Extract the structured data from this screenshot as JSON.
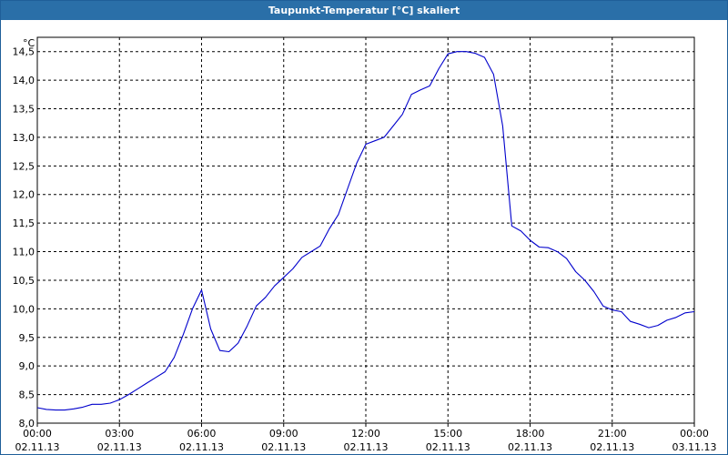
{
  "window": {
    "title": "Taupunkt-Temperatur [°C] skaliert"
  },
  "colors": {
    "titlebar": "#2a6fa8",
    "line": "#0000cc",
    "grid": "#000000"
  },
  "chart_data": {
    "type": "line",
    "title": "Taupunkt-Temperatur [°C] skaliert",
    "ylabel": "°C",
    "xlabel": "",
    "ylim": [
      8.0,
      14.75
    ],
    "xlim": [
      "2013-11-02 00:00",
      "2013-11-03 00:00"
    ],
    "grid": true,
    "yticks": [
      "8,0",
      "8,5",
      "9,0",
      "9,5",
      "10,0",
      "10,5",
      "11,0",
      "11,5",
      "12,0",
      "12,5",
      "13,0",
      "13,5",
      "14,0",
      "14,5"
    ],
    "ytick_values": [
      8.0,
      8.5,
      9.0,
      9.5,
      10.0,
      10.5,
      11.0,
      11.5,
      12.0,
      12.5,
      13.0,
      13.5,
      14.0,
      14.5
    ],
    "xticks": [
      {
        "time": "00:00",
        "date": "02.11.13"
      },
      {
        "time": "03:00",
        "date": "02.11.13"
      },
      {
        "time": "06:00",
        "date": "02.11.13"
      },
      {
        "time": "09:00",
        "date": "02.11.13"
      },
      {
        "time": "12:00",
        "date": "02.11.13"
      },
      {
        "time": "15:00",
        "date": "02.11.13"
      },
      {
        "time": "18:00",
        "date": "02.11.13"
      },
      {
        "time": "21:00",
        "date": "02.11.13"
      },
      {
        "time": "00:00",
        "date": "03.11.13"
      }
    ],
    "series": [
      {
        "x": [
          "00:00",
          "00:20",
          "00:40",
          "01:00",
          "01:20",
          "01:40",
          "02:00",
          "02:20",
          "02:40",
          "03:00",
          "03:20",
          "03:40",
          "04:00",
          "04:20",
          "04:40",
          "05:00",
          "05:20",
          "05:40",
          "06:00",
          "06:20",
          "06:40",
          "07:00",
          "07:20",
          "07:40",
          "08:00",
          "08:20",
          "08:40",
          "09:00",
          "09:20",
          "09:40",
          "10:00",
          "10:20",
          "10:40",
          "11:00",
          "11:20",
          "11:40",
          "12:00",
          "12:20",
          "12:40",
          "13:00",
          "13:20",
          "13:40",
          "14:00",
          "14:20",
          "14:40",
          "15:00",
          "15:20",
          "15:40",
          "16:00",
          "16:20",
          "16:40",
          "17:00",
          "17:20",
          "17:40",
          "18:00",
          "18:20",
          "18:40",
          "19:00",
          "19:20",
          "19:40",
          "20:00",
          "20:20",
          "20:40",
          "21:00",
          "21:20",
          "21:40",
          "22:00",
          "22:20",
          "22:40",
          "23:00",
          "23:20",
          "23:40",
          "24:00"
        ],
        "values": [
          8.27,
          8.24,
          8.23,
          8.23,
          8.25,
          8.28,
          8.33,
          8.33,
          8.35,
          8.41,
          8.5,
          8.6,
          8.7,
          8.8,
          8.9,
          9.15,
          9.55,
          10.0,
          10.33,
          9.65,
          9.27,
          9.25,
          9.4,
          9.7,
          10.05,
          10.2,
          10.4,
          10.55,
          10.7,
          10.9,
          11.0,
          11.1,
          11.4,
          11.65,
          12.1,
          12.55,
          12.88,
          12.94,
          13.0,
          13.2,
          13.4,
          13.75,
          13.83,
          13.9,
          14.2,
          14.46,
          14.5,
          14.5,
          14.47,
          14.4,
          14.1,
          13.2,
          11.45,
          11.36,
          11.2,
          11.08,
          11.07,
          11.0,
          10.88,
          10.65,
          10.5,
          10.3,
          10.05,
          9.98,
          9.95,
          9.78,
          9.73,
          9.67,
          9.71,
          9.8,
          9.85,
          9.93,
          9.95
        ]
      }
    ]
  }
}
